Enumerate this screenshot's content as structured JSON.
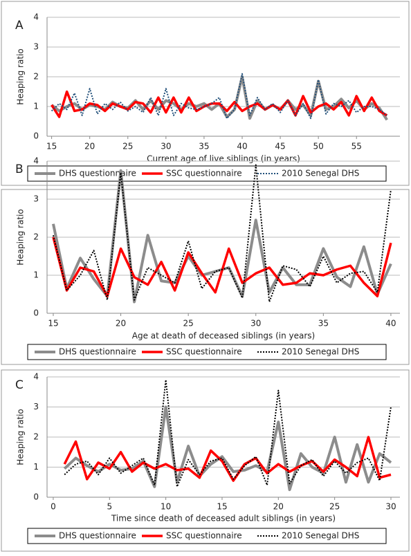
{
  "chart_data": [
    {
      "type": "line",
      "panel_label": "A",
      "y_label": "Heaping ratio",
      "x_label": "Current age of live siblings (in years)",
      "x": [
        15,
        16,
        17,
        18,
        19,
        20,
        21,
        22,
        23,
        24,
        25,
        26,
        27,
        28,
        29,
        30,
        31,
        32,
        33,
        34,
        35,
        36,
        37,
        38,
        39,
        40,
        41,
        42,
        43,
        44,
        45,
        46,
        47,
        48,
        49,
        50,
        51,
        52,
        53,
        54,
        55,
        56,
        57,
        58,
        59
      ],
      "xlim": [
        14.4,
        60.7
      ],
      "xticks": [
        15,
        20,
        25,
        30,
        35,
        40,
        45,
        50,
        55
      ],
      "ylim": [
        0,
        4
      ],
      "yticks": [
        0,
        1,
        2,
        3,
        4
      ],
      "grid": true,
      "series": [
        {
          "name": "DHS questionnaire",
          "color": "#8c8c8c",
          "style": "solid",
          "values": [
            1.05,
            0.85,
            1.0,
            1.1,
            0.9,
            1.05,
            1.0,
            0.9,
            1.15,
            1.0,
            0.95,
            1.2,
            0.9,
            1.2,
            0.9,
            1.2,
            1.1,
            0.9,
            1.1,
            1.0,
            1.1,
            0.9,
            1.1,
            0.65,
            0.9,
            2.0,
            0.6,
            1.2,
            0.9,
            1.05,
            0.9,
            1.2,
            0.9,
            1.05,
            0.7,
            1.85,
            0.9,
            1.0,
            1.25,
            0.95,
            1.2,
            0.9,
            1.1,
            0.95,
            0.55
          ]
        },
        {
          "name": "SSC questionnaire",
          "color": "#ff0000",
          "style": "solid",
          "values": [
            1.05,
            0.65,
            1.5,
            0.85,
            0.9,
            1.1,
            1.05,
            0.85,
            1.1,
            1.0,
            0.9,
            1.15,
            1.1,
            0.8,
            1.3,
            0.8,
            1.3,
            0.8,
            1.3,
            0.85,
            1.0,
            1.1,
            1.1,
            0.85,
            1.15,
            0.85,
            1.0,
            1.1,
            0.9,
            1.05,
            0.9,
            1.2,
            0.7,
            1.35,
            0.8,
            1.0,
            1.1,
            0.9,
            1.15,
            0.7,
            1.35,
            0.85,
            1.3,
            0.85,
            0.7
          ]
        },
        {
          "name": "2010 Senegal DHS",
          "color": "#1f4e79",
          "style": "dotted",
          "values": [
            0.85,
            1.1,
            0.9,
            1.45,
            0.7,
            1.6,
            0.75,
            1.1,
            0.9,
            1.15,
            0.85,
            1.0,
            0.8,
            1.3,
            0.7,
            1.6,
            0.7,
            1.1,
            0.95,
            0.9,
            1.0,
            1.1,
            1.3,
            0.6,
            0.9,
            2.1,
            0.7,
            1.3,
            0.9,
            1.1,
            0.8,
            1.2,
            0.7,
            1.1,
            0.6,
            1.9,
            0.75,
            1.1,
            1.0,
            1.2,
            0.8,
            1.0,
            1.0,
            0.9,
            0.7
          ]
        }
      ]
    },
    {
      "type": "line",
      "panel_label": "B",
      "y_label": "Heaping ratio",
      "x_label": "Age at death of deceased siblings (in years)",
      "x": [
        15,
        16,
        17,
        18,
        19,
        20,
        21,
        22,
        23,
        24,
        25,
        26,
        27,
        28,
        29,
        30,
        31,
        32,
        33,
        34,
        35,
        36,
        37,
        38,
        39,
        40
      ],
      "xlim": [
        14.54,
        40.67
      ],
      "xticks": [
        15,
        20,
        25,
        30,
        35,
        40
      ],
      "ylim": [
        0,
        4
      ],
      "yticks": [
        0,
        1,
        2,
        3,
        4
      ],
      "grid": true,
      "series": [
        {
          "name": "DHS questionnaire",
          "color": "#8c8c8c",
          "style": "solid",
          "values": [
            2.35,
            0.65,
            1.45,
            0.9,
            0.45,
            3.75,
            0.3,
            2.05,
            0.85,
            0.8,
            1.5,
            1.0,
            1.1,
            1.2,
            0.45,
            2.45,
            0.55,
            1.2,
            0.75,
            0.75,
            1.7,
            0.95,
            0.7,
            1.75,
            0.5,
            1.3
          ]
        },
        {
          "name": "SSC questionnaire",
          "color": "#ff0000",
          "style": "solid",
          "values": [
            2.0,
            0.6,
            1.2,
            1.1,
            0.45,
            1.7,
            0.95,
            0.75,
            1.35,
            0.6,
            1.6,
            1.05,
            0.55,
            1.7,
            0.8,
            1.05,
            1.2,
            0.75,
            0.8,
            1.05,
            1.0,
            1.15,
            1.25,
            0.8,
            0.45,
            1.85
          ]
        },
        {
          "name": "2010 Senegal DHS",
          "color": "#000000",
          "style": "dotted",
          "values": [
            2.05,
            0.6,
            1.0,
            1.65,
            0.35,
            3.7,
            0.35,
            1.2,
            1.0,
            0.8,
            1.9,
            0.65,
            1.1,
            1.2,
            0.4,
            3.9,
            0.3,
            1.25,
            1.15,
            0.7,
            1.5,
            0.8,
            1.05,
            1.1,
            0.55,
            3.25
          ]
        }
      ]
    },
    {
      "type": "line",
      "panel_label": "C",
      "y_label": "Heaping ratio",
      "x_label": "Time since death of deceased adult siblings (in years)",
      "x": [
        1,
        2,
        3,
        4,
        5,
        6,
        7,
        8,
        9,
        10,
        11,
        12,
        13,
        14,
        15,
        16,
        17,
        18,
        19,
        20,
        21,
        22,
        23,
        24,
        25,
        26,
        27,
        28,
        29,
        30
      ],
      "xlim": [
        -0.55,
        30.8
      ],
      "xticks": [
        0,
        5,
        10,
        15,
        20,
        25,
        30
      ],
      "ylim": [
        0,
        4
      ],
      "yticks": [
        0,
        1,
        2,
        3,
        4
      ],
      "grid": true,
      "series": [
        {
          "name": "DHS questionnaire",
          "color": "#8c8c8c",
          "style": "solid",
          "values": [
            0.95,
            1.3,
            1.05,
            0.85,
            1.1,
            0.9,
            0.95,
            1.2,
            0.35,
            3.0,
            0.5,
            1.7,
            0.7,
            1.1,
            1.35,
            0.85,
            0.9,
            1.05,
            0.85,
            2.5,
            0.25,
            1.45,
            1.0,
            0.8,
            2.0,
            0.5,
            1.75,
            0.5,
            1.45,
            1.15
          ]
        },
        {
          "name": "SSC questionnaire",
          "color": "#ff0000",
          "style": "solid",
          "values": [
            1.1,
            1.85,
            0.6,
            1.15,
            0.95,
            1.5,
            0.85,
            1.15,
            0.95,
            1.1,
            0.9,
            0.95,
            0.65,
            1.55,
            1.2,
            0.55,
            1.1,
            1.3,
            0.8,
            1.1,
            0.85,
            1.05,
            1.2,
            0.85,
            1.25,
            1.0,
            0.7,
            2.0,
            0.65,
            0.75
          ]
        },
        {
          "name": "2010 Senegal DHS",
          "color": "#000000",
          "style": "dotted",
          "values": [
            0.75,
            1.1,
            1.2,
            0.75,
            1.3,
            0.8,
            1.05,
            1.3,
            0.4,
            3.9,
            0.35,
            1.25,
            0.75,
            1.2,
            1.3,
            0.6,
            1.05,
            1.35,
            0.4,
            3.55,
            0.45,
            1.05,
            1.25,
            0.7,
            1.2,
            0.8,
            1.15,
            1.3,
            0.55,
            3.0
          ]
        }
      ]
    }
  ]
}
